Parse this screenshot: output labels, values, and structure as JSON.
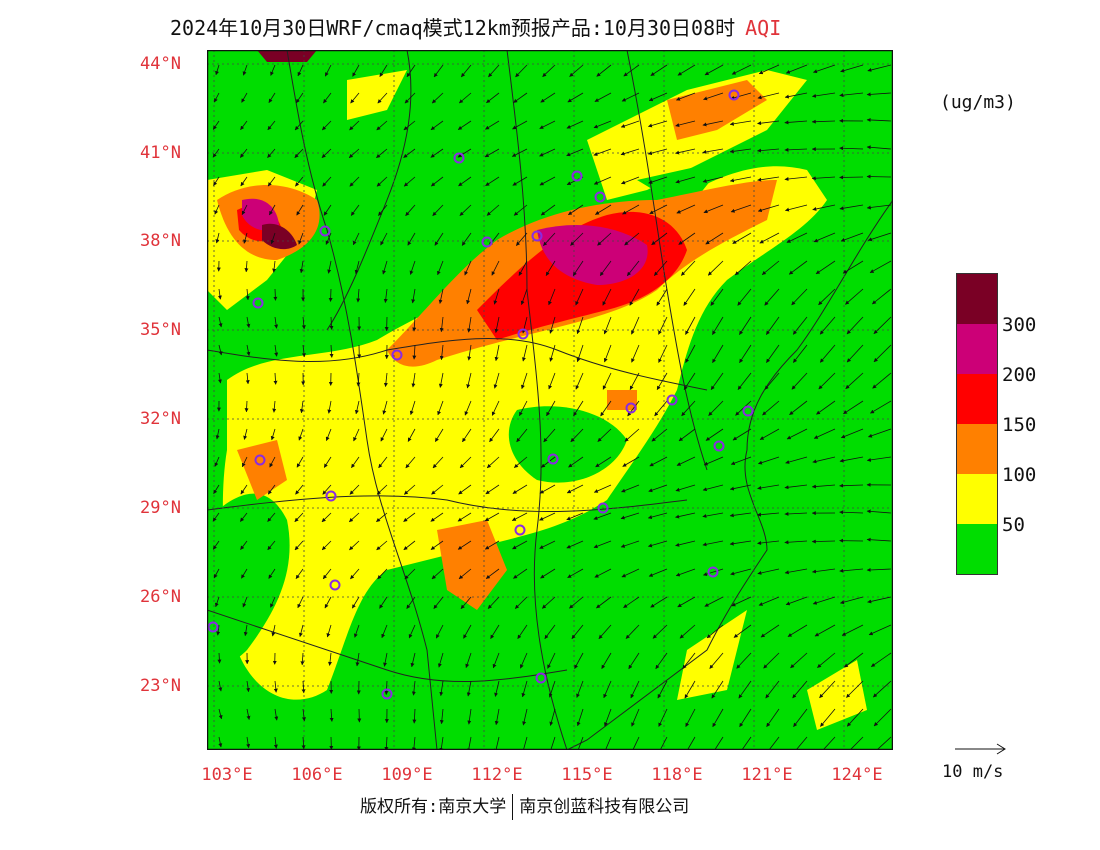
{
  "title": {
    "main": "2024年10月30日WRF/cmaq模式12km预报产品:10月30日08时",
    "variable": "AQI"
  },
  "axes": {
    "lat_labels": [
      "44°N",
      "41°N",
      "38°N",
      "35°N",
      "32°N",
      "29°N",
      "26°N",
      "23°N"
    ],
    "lon_labels": [
      "103°E",
      "106°E",
      "109°E",
      "112°E",
      "115°E",
      "118°E",
      "121°E",
      "124°E"
    ]
  },
  "legend": {
    "units": "(ug/m3)",
    "levels": [
      "300",
      "200",
      "150",
      "100",
      "50"
    ],
    "colors": [
      "#7a0025",
      "#cc0077",
      "#ff0000",
      "#ff8000",
      "#ffff00",
      "#00dd00"
    ]
  },
  "wind_reference": {
    "label": "10 m/s"
  },
  "copyright": {
    "part1": "版权所有:南京大学",
    "part2": "南京创蓝科技有限公司"
  },
  "colors": {
    "accent": "#e0333a",
    "ocean": "#00dd00"
  }
}
